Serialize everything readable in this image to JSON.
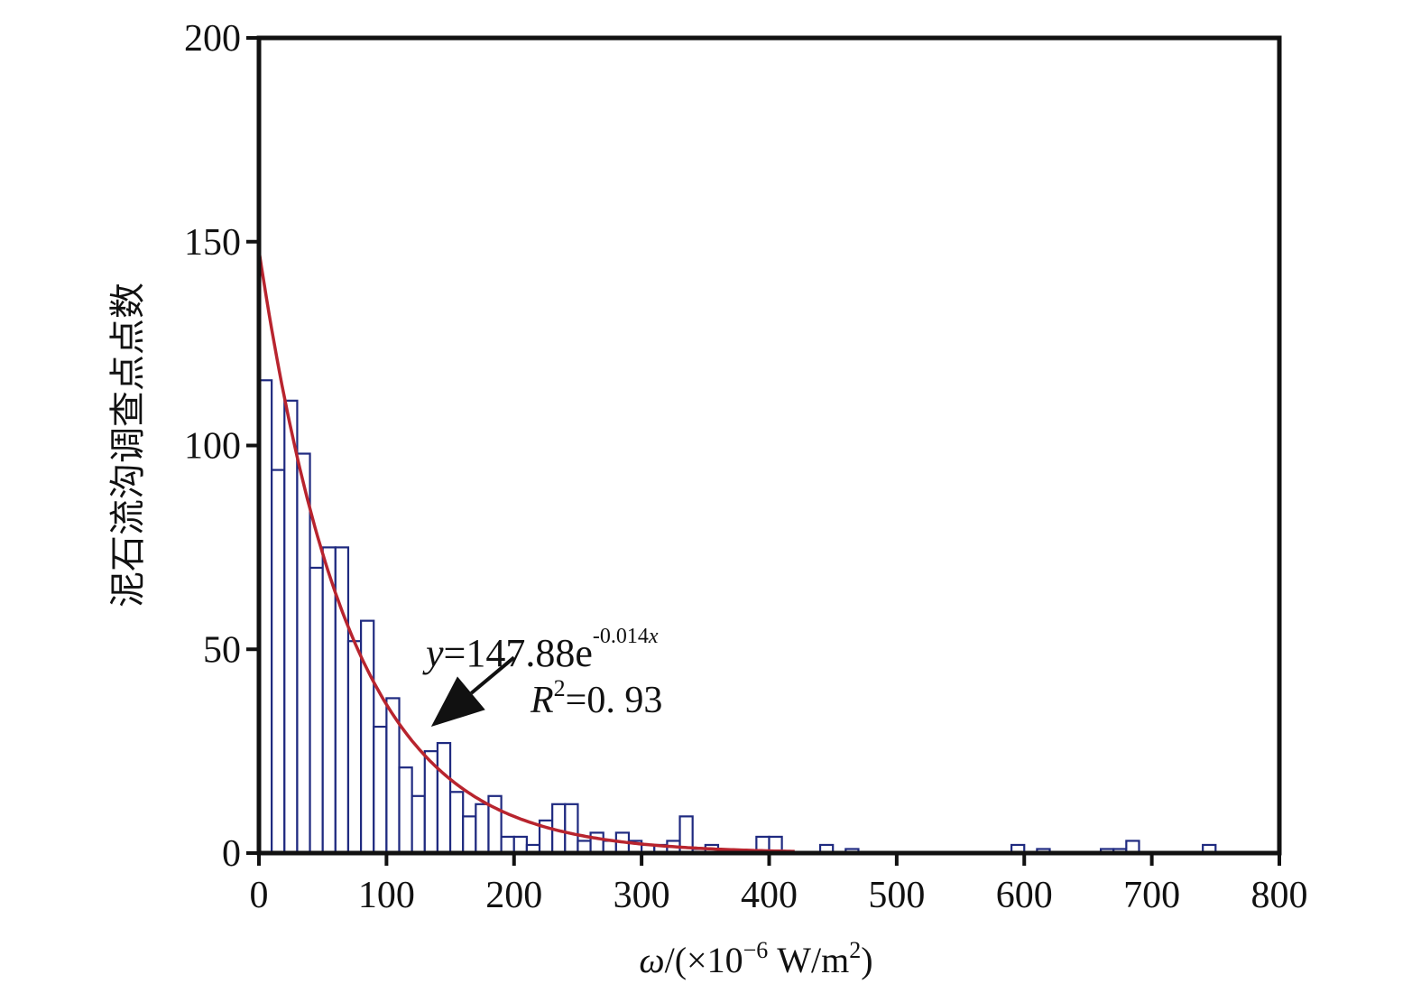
{
  "chart_data": {
    "type": "bar",
    "xlabel_prefix": "ω",
    "xlabel_base": "/(×10",
    "xlabel_exp": "−6",
    "xlabel_unit": " W/m",
    "xlabel_unit_exp": "2",
    "xlabel_close": ")",
    "ylabel": "泥石流沟调查点点数",
    "xlim": [
      0,
      800
    ],
    "ylim": [
      0,
      200
    ],
    "xticks": [
      "0",
      "100",
      "200",
      "300",
      "400",
      "500",
      "600",
      "700",
      "800"
    ],
    "yticks": [
      "0",
      "50",
      "100",
      "150",
      "200"
    ],
    "bin_width": 10,
    "bins": [
      {
        "x": 0,
        "value": 116
      },
      {
        "x": 10,
        "value": 94
      },
      {
        "x": 20,
        "value": 111
      },
      {
        "x": 30,
        "value": 98
      },
      {
        "x": 40,
        "value": 70
      },
      {
        "x": 50,
        "value": 75
      },
      {
        "x": 60,
        "value": 75
      },
      {
        "x": 70,
        "value": 52
      },
      {
        "x": 80,
        "value": 57
      },
      {
        "x": 90,
        "value": 31
      },
      {
        "x": 100,
        "value": 38
      },
      {
        "x": 110,
        "value": 21
      },
      {
        "x": 120,
        "value": 14
      },
      {
        "x": 130,
        "value": 25
      },
      {
        "x": 140,
        "value": 27
      },
      {
        "x": 150,
        "value": 15
      },
      {
        "x": 160,
        "value": 9
      },
      {
        "x": 170,
        "value": 12
      },
      {
        "x": 180,
        "value": 14
      },
      {
        "x": 190,
        "value": 4
      },
      {
        "x": 200,
        "value": 4
      },
      {
        "x": 210,
        "value": 2
      },
      {
        "x": 220,
        "value": 8
      },
      {
        "x": 230,
        "value": 12
      },
      {
        "x": 240,
        "value": 12
      },
      {
        "x": 250,
        "value": 3
      },
      {
        "x": 260,
        "value": 5
      },
      {
        "x": 270,
        "value": 3
      },
      {
        "x": 280,
        "value": 5
      },
      {
        "x": 290,
        "value": 3
      },
      {
        "x": 300,
        "value": 2
      },
      {
        "x": 310,
        "value": 2
      },
      {
        "x": 320,
        "value": 3
      },
      {
        "x": 330,
        "value": 9
      },
      {
        "x": 340,
        "value": 1
      },
      {
        "x": 350,
        "value": 2
      },
      {
        "x": 390,
        "value": 4
      },
      {
        "x": 400,
        "value": 4
      },
      {
        "x": 440,
        "value": 2
      },
      {
        "x": 460,
        "value": 1
      },
      {
        "x": 590,
        "value": 2
      },
      {
        "x": 610,
        "value": 1
      },
      {
        "x": 660,
        "value": 1
      },
      {
        "x": 670,
        "value": 1
      },
      {
        "x": 680,
        "value": 3
      },
      {
        "x": 740,
        "value": 2
      }
    ],
    "fit": {
      "a": 147.88,
      "b": -0.014,
      "x_max": 420
    },
    "annotation": {
      "eq_var": "y",
      "eq_rest": "=147.88e",
      "eq_exp": "-0.014",
      "eq_exp_var": "x",
      "r2_var": "R",
      "r2_exp": "2",
      "r2_rest": "=0. 93",
      "arrow_tip": {
        "x": 135,
        "y": 31
      },
      "arrow_tail": {
        "x": 200,
        "y": 48
      }
    },
    "colors": {
      "bar_stroke": "#1f2a80",
      "bar_fill": "#ffffff",
      "fit_line": "#b8242e",
      "axis": "#111111"
    }
  }
}
